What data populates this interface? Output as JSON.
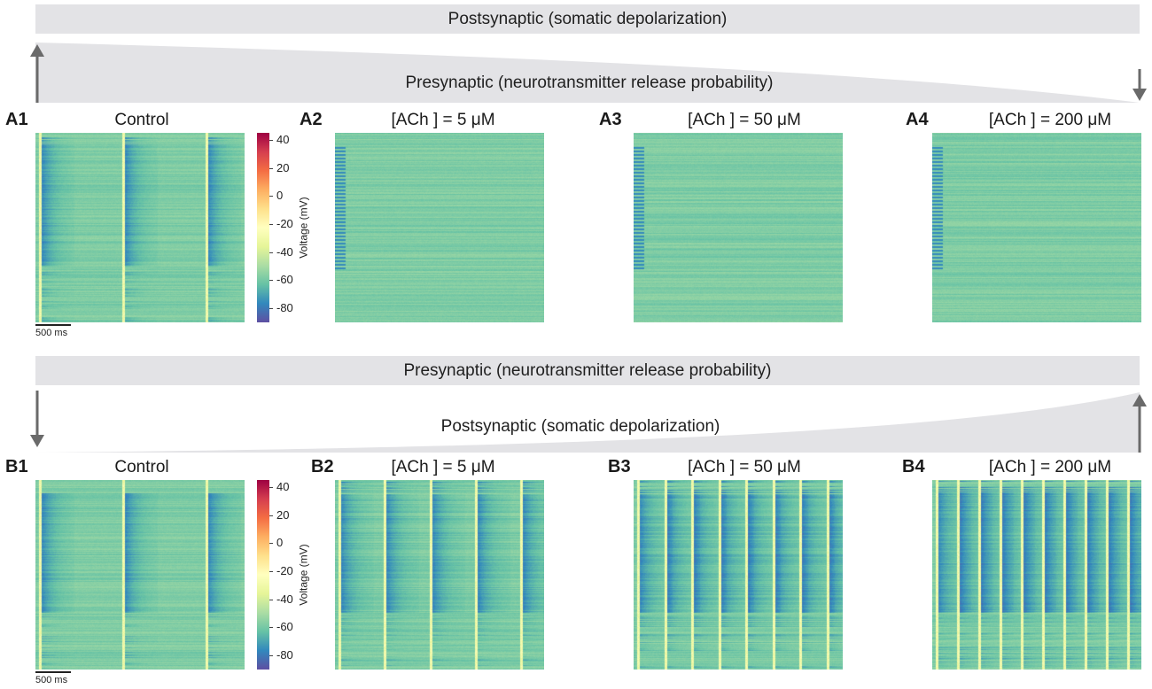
{
  "section_a": {
    "top_bar_label": "Postsynaptic (somatic depolarization)",
    "wedge_label": "Presynaptic (neurotransmitter release probability)",
    "panels": [
      {
        "label": "A1",
        "title": "Control"
      },
      {
        "label": "A2",
        "title": "[ACh ] = 5 μM"
      },
      {
        "label": "A3",
        "title": "[ACh ] = 50 μM"
      },
      {
        "label": "A4",
        "title": "[ACh ] = 200 μM"
      }
    ],
    "scale_bar": "500 ms"
  },
  "section_b": {
    "top_bar_label": "Presynaptic (neurotransmitter release probability)",
    "wedge_label": "Postsynaptic (somatic depolarization)",
    "panels": [
      {
        "label": "B1",
        "title": "Control"
      },
      {
        "label": "B2",
        "title": "[ACh ] = 5 μM"
      },
      {
        "label": "B3",
        "title": "[ACh ] = 50 μM"
      },
      {
        "label": "B4",
        "title": "[ACh ] = 200 μM"
      }
    ],
    "scale_bar": "500 ms"
  },
  "colorbar": {
    "title": "Voltage (mV)",
    "ticks": [
      "40",
      "20",
      "0",
      "-20",
      "-40",
      "-60",
      "-80"
    ],
    "range": [
      -90,
      45
    ],
    "colors": [
      "#9e0142",
      "#d53e4f",
      "#f46d43",
      "#fdae61",
      "#fee08b",
      "#ffffbf",
      "#e6f598",
      "#abdda4",
      "#66c2a5",
      "#3288bd",
      "#5e4fa2"
    ]
  },
  "heatmaps": {
    "A1": {
      "bursts": 3
    },
    "A2": {
      "bursts": 0
    },
    "A3": {
      "bursts": 0
    },
    "A4": {
      "bursts": 0
    },
    "B1": {
      "bursts": 3
    },
    "B2": {
      "bursts": 5
    },
    "B3": {
      "bursts": 8
    },
    "B4": {
      "bursts": 10
    }
  }
}
